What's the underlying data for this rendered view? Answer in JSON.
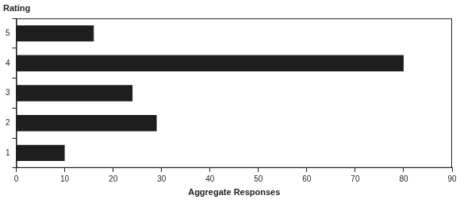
{
  "chart_data": {
    "type": "bar",
    "orientation": "horizontal",
    "ylabel": "Rating",
    "xlabel": "Aggregate Responses",
    "categories": [
      "5",
      "4",
      "3",
      "2",
      "1"
    ],
    "values": [
      16,
      80,
      24,
      29,
      10
    ],
    "color": "#1e1e1e",
    "xlim": [
      0,
      90
    ],
    "xticks": [
      0,
      10,
      20,
      30,
      40,
      50,
      60,
      70,
      80,
      90
    ],
    "grid": false
  }
}
